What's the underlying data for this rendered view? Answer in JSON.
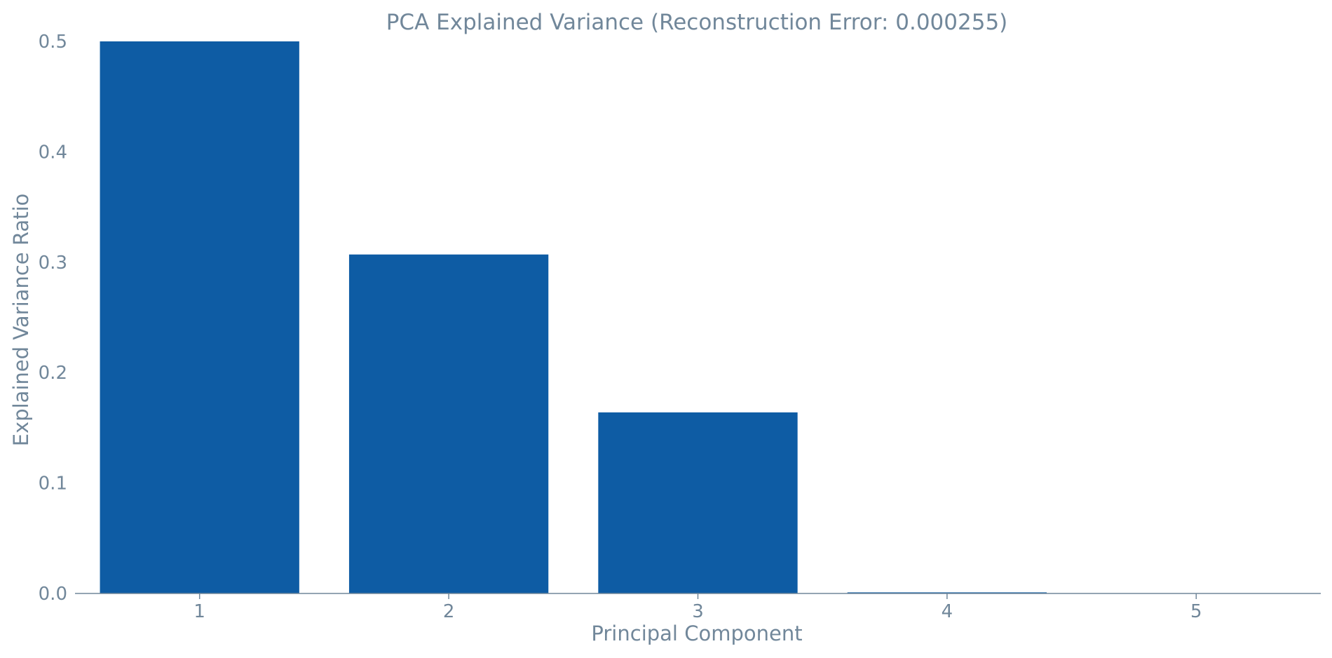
{
  "chart_data": {
    "type": "bar",
    "title": "PCA Explained Variance (Reconstruction Error: 0.000255)",
    "xlabel": "Principal Component",
    "ylabel": "Explained Variance Ratio",
    "categories": [
      "1",
      "2",
      "3",
      "4",
      "5"
    ],
    "values": [
      0.5,
      0.307,
      0.164,
      0.001,
      0.0
    ],
    "ylim": [
      0,
      0.5
    ],
    "yticks": [
      "0.0",
      "0.1",
      "0.2",
      "0.3",
      "0.4",
      "0.5"
    ],
    "grid": false,
    "legend": "none",
    "colors": {
      "bar": "#0e5ca4",
      "text": "#71879a",
      "axis": "#71879a"
    }
  }
}
